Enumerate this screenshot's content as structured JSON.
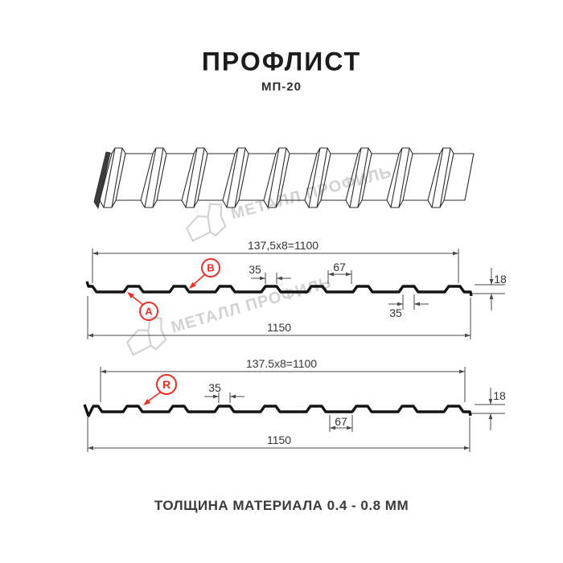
{
  "header": {
    "title": "ПРОФЛИСТ",
    "subtitle": "МП-20"
  },
  "watermark": {
    "text": "МЕТАЛЛ ПРОФИЛЬ"
  },
  "profile_top": {
    "label_a": "A",
    "label_b": "B",
    "dim_module": "137,5x8=1100",
    "dim_rib_top": "35",
    "dim_rib_base": "67",
    "dim_height": "18",
    "dim_rib_bottom": "35",
    "dim_total": "1150"
  },
  "profile_bottom": {
    "label_r": "R",
    "dim_module": "137.5x8=1100",
    "dim_rib_top": "35",
    "dim_height": "18",
    "dim_rib_base": "67",
    "dim_total": "1150"
  },
  "footer": {
    "note": "ТОЛЩИНА МАТЕРИАЛА 0.4 - 0.8 ММ"
  },
  "colors": {
    "background": "#ffffff",
    "line": "#141414",
    "thin_line": "#2b2b2b",
    "dim_line": "#4a4a4a",
    "accent_red": "#ee2d23",
    "watermark": "#d2d2d2"
  }
}
